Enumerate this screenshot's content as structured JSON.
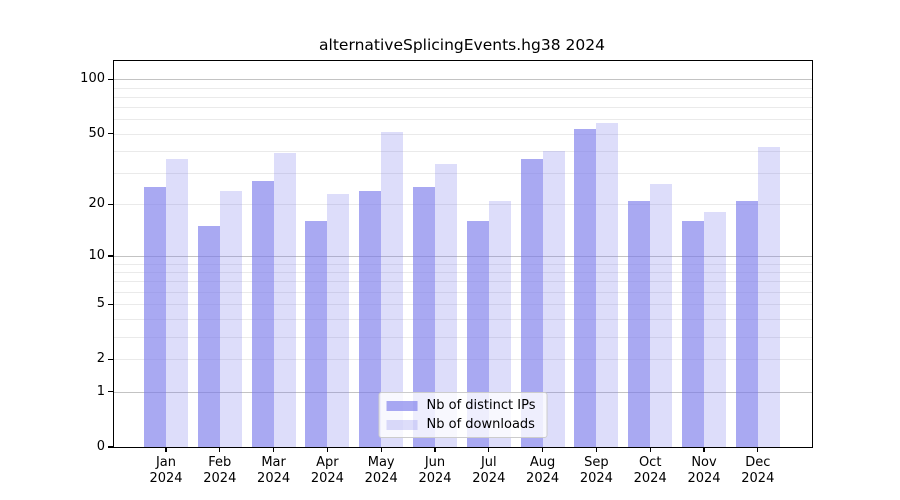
{
  "title": "alternativeSplicingEvents.hg38 2024",
  "legend": {
    "items": [
      {
        "label": "Nb of distinct IPs",
        "color": "rgba(120,120,235,0.64)"
      },
      {
        "label": "Nb of downloads",
        "color": "rgba(120,120,235,0.25)"
      }
    ]
  },
  "colors": {
    "bar_dark": "rgba(120,120,235,0.64)",
    "bar_light": "rgba(120,120,235,0.25)",
    "grid_major": "#c3c3c3",
    "grid_minor": "#eaeaea",
    "axis": "#000000",
    "legend_border": "#cccccc",
    "legend_bg": "rgba(255,255,255,0.8)",
    "text": "#000000"
  },
  "chart_data": {
    "type": "bar",
    "title": "alternativeSplicingEvents.hg38 2024",
    "categories": [
      "Jan 2024",
      "Feb 2024",
      "Mar 2024",
      "Apr 2024",
      "May 2024",
      "Jun 2024",
      "Jul 2024",
      "Aug 2024",
      "Sep 2024",
      "Oct 2024",
      "Nov 2024",
      "Dec 2024"
    ],
    "series": [
      {
        "name": "Nb of distinct IPs",
        "values": [
          25,
          15,
          27,
          16,
          24,
          25,
          16,
          36,
          53,
          21,
          16,
          21
        ]
      },
      {
        "name": "Nb of downloads",
        "values": [
          36,
          24,
          39,
          23,
          51,
          34,
          21,
          40,
          57,
          26,
          18,
          42
        ]
      }
    ],
    "xlabel": "",
    "ylabel": "",
    "yscale": "log1p",
    "ylim": [
      0,
      126
    ],
    "yticks": [
      0,
      1,
      2,
      5,
      10,
      20,
      50,
      100
    ],
    "gridlines_major": [
      1,
      10,
      100
    ],
    "gridlines_minor": [
      2,
      3,
      4,
      5,
      6,
      7,
      8,
      9,
      20,
      30,
      40,
      50,
      60,
      70,
      80,
      90
    ],
    "grid": "horizontal-only",
    "legend_position": "lower center"
  }
}
